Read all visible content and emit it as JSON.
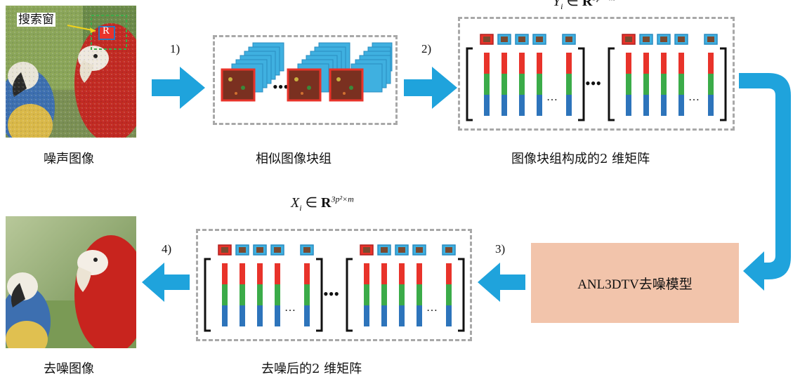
{
  "labels": {
    "noisy_image": "噪声图像",
    "similar_patches": "相似图像块组",
    "matrix_from_patches": "图像块组构成的2 维矩阵",
    "denoised_image": "去噪图像",
    "denoised_matrix": "去噪后的2 维矩阵",
    "search_window": "搜索窗",
    "reference_patch": "R"
  },
  "steps": {
    "s1": "1)",
    "s2": "2)",
    "s3": "3)",
    "s4": "4)"
  },
  "model": {
    "name": "ANL3DTV去噪模型"
  },
  "math": {
    "y_var": "Y",
    "y_sub": "i",
    "x_var": "X",
    "x_sub": "i",
    "in_symbol": "∈",
    "real_symbol": "R",
    "dim_expr": "3p²×m"
  },
  "ellipsis": "…",
  "colors": {
    "arrow": "#1fa3dc",
    "red_band": "#e8332a",
    "green_band": "#3bab49",
    "blue_band": "#2d74bb",
    "dash": "#a8a8a8",
    "model_fill": "#f2c4ab"
  },
  "icons": [
    "right-arrow-icon",
    "left-arrow-icon",
    "curved-arrow-icon"
  ]
}
